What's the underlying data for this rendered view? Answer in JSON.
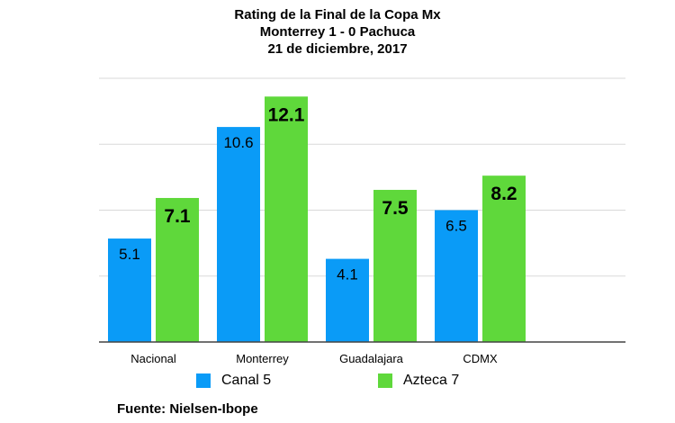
{
  "chart_data": {
    "type": "bar",
    "title": [
      "Rating de la Final de la Copa Mx",
      "Monterrey 1 - 0 Pachuca",
      "21 de diciembre, 2017"
    ],
    "categories": [
      "Nacional",
      "Monterrey",
      "Guadalajara",
      "CDMX"
    ],
    "series": [
      {
        "name": "Canal 5",
        "values": [
          5.1,
          10.6,
          4.1,
          6.5
        ],
        "color": "#0a9bf7",
        "labels": [
          "5.1",
          "10.6",
          "4.1",
          "6.5"
        ]
      },
      {
        "name": "Azteca 7",
        "values": [
          7.1,
          12.1,
          7.5,
          8.2
        ],
        "color": "#5fd83b",
        "labels": [
          "7.1",
          "12.1",
          "7.5",
          "8.2"
        ]
      }
    ],
    "ylim": [
      0,
      13
    ],
    "grid": true,
    "legend": "bottom",
    "source": "Fuente: Nielsen-Ibope"
  }
}
